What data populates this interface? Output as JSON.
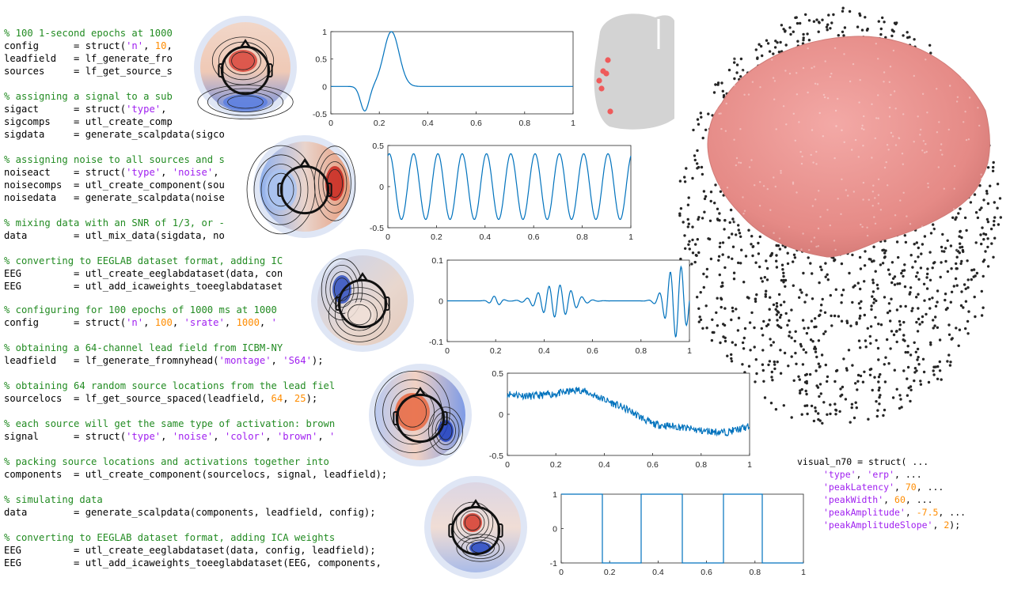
{
  "code_lines": [
    {
      "y": 46,
      "segs": [
        [
          "% 100 1-second epochs at 1000 ",
          "c"
        ]
      ]
    },
    {
      "y": 62,
      "segs": [
        [
          "config      = struct(",
          "p"
        ],
        [
          "'n'",
          "s"
        ],
        [
          ", ",
          "p"
        ],
        [
          "10",
          "n"
        ],
        [
          ",",
          "p"
        ]
      ]
    },
    {
      "y": 78,
      "segs": [
        [
          "leadfield   = lf_generate_fro",
          "p"
        ]
      ]
    },
    {
      "y": 94,
      "segs": [
        [
          "sources     = lf_get_source_s",
          "p"
        ]
      ]
    },
    {
      "y": 126,
      "segs": [
        [
          "% assigning a signal to a sub",
          "c"
        ]
      ]
    },
    {
      "y": 142,
      "segs": [
        [
          "sigact      = struct(",
          "p"
        ],
        [
          "'type'",
          "s"
        ],
        [
          ",",
          "p"
        ]
      ]
    },
    {
      "y": 158,
      "segs": [
        [
          "sigcomps    = utl_create_comp",
          "p"
        ]
      ]
    },
    {
      "y": 174,
      "segs": [
        [
          "sigdata     = generate_scalpdata(sigco",
          "p"
        ]
      ]
    },
    {
      "y": 206,
      "segs": [
        [
          "% assigning noise to all sources and s",
          "c"
        ]
      ]
    },
    {
      "y": 222,
      "segs": [
        [
          "noiseact    = struct(",
          "p"
        ],
        [
          "'type'",
          "s"
        ],
        [
          ", ",
          "p"
        ],
        [
          "'noise'",
          "s"
        ],
        [
          ",",
          "p"
        ]
      ]
    },
    {
      "y": 238,
      "segs": [
        [
          "noisecomps  = utl_create_component(sou",
          "p"
        ]
      ]
    },
    {
      "y": 254,
      "segs": [
        [
          "noisedata   = generate_scalpdata(noise",
          "p"
        ]
      ]
    },
    {
      "y": 286,
      "segs": [
        [
          "% mixing data with an SNR of 1/3, or -",
          "c"
        ]
      ]
    },
    {
      "y": 302,
      "segs": [
        [
          "data        = utl_mix_data(sigdata, no",
          "p"
        ]
      ]
    },
    {
      "y": 334,
      "segs": [
        [
          "% converting to EEGLAB dataset format, adding IC",
          "c"
        ]
      ]
    },
    {
      "y": 350,
      "segs": [
        [
          "EEG         = utl_create_eeglabdataset(data, con",
          "p"
        ]
      ]
    },
    {
      "y": 366,
      "segs": [
        [
          "EEG         = utl_add_icaweights_toeeglabdataset",
          "p"
        ]
      ]
    },
    {
      "y": 396,
      "segs": [
        [
          "% configuring for 100 epochs of 1000 ms at 1000",
          "c"
        ]
      ]
    },
    {
      "y": 412,
      "segs": [
        [
          "config      = struct(",
          "p"
        ],
        [
          "'n'",
          "s"
        ],
        [
          ", ",
          "p"
        ],
        [
          "100",
          "n"
        ],
        [
          ", ",
          "p"
        ],
        [
          "'srate'",
          "s"
        ],
        [
          ", ",
          "p"
        ],
        [
          "1000",
          "n"
        ],
        [
          ", ",
          "p"
        ],
        [
          "'",
          "s"
        ]
      ]
    },
    {
      "y": 444,
      "segs": [
        [
          "% obtaining a 64-channel lead field from ICBM-NY",
          "c"
        ]
      ]
    },
    {
      "y": 460,
      "segs": [
        [
          "leadfield   = lf_generate_fromnyhead(",
          "p"
        ],
        [
          "'montage'",
          "s"
        ],
        [
          ", ",
          "p"
        ],
        [
          "'S64'",
          "s"
        ],
        [
          ");",
          "p"
        ]
      ]
    },
    {
      "y": 492,
      "segs": [
        [
          "% obtaining 64 random source locations from the lead fiel",
          "c"
        ]
      ]
    },
    {
      "y": 508,
      "segs": [
        [
          "sourcelocs  = lf_get_source_spaced(leadfield, ",
          "p"
        ],
        [
          "64",
          "n"
        ],
        [
          ", ",
          "p"
        ],
        [
          "25",
          "n"
        ],
        [
          ");",
          "p"
        ]
      ]
    },
    {
      "y": 540,
      "segs": [
        [
          "% each source will get the same type of activation: brown",
          "c"
        ]
      ]
    },
    {
      "y": 556,
      "segs": [
        [
          "signal      = struct(",
          "p"
        ],
        [
          "'type'",
          "s"
        ],
        [
          ", ",
          "p"
        ],
        [
          "'noise'",
          "s"
        ],
        [
          ", ",
          "p"
        ],
        [
          "'color'",
          "s"
        ],
        [
          ", ",
          "p"
        ],
        [
          "'brown'",
          "s"
        ],
        [
          ", ",
          "p"
        ],
        [
          "'",
          "s"
        ]
      ]
    },
    {
      "y": 588,
      "segs": [
        [
          "% packing source locations and activations together into",
          "c"
        ]
      ]
    },
    {
      "y": 604,
      "segs": [
        [
          "components  = utl_create_component(sourcelocs, signal, leadfield);",
          "p"
        ]
      ]
    },
    {
      "y": 636,
      "segs": [
        [
          "% simulating data",
          "c"
        ]
      ]
    },
    {
      "y": 652,
      "segs": [
        [
          "data        = generate_scalpdata(components, leadfield, config);",
          "p"
        ]
      ]
    },
    {
      "y": 684,
      "segs": [
        [
          "% converting to EEGLAB dataset format, adding ICA weights",
          "c"
        ]
      ]
    },
    {
      "y": 700,
      "segs": [
        [
          "EEG         = utl_create_eeglabdataset(data, config, leadfield);",
          "p"
        ]
      ]
    },
    {
      "y": 716,
      "segs": [
        [
          "EEG         = utl_add_icaweights_toeeglabdataset(EEG, components,",
          "p"
        ]
      ]
    }
  ],
  "snippet_lines": [
    {
      "x": 1007,
      "y": 587,
      "segs": [
        [
          "visual_n70 = struct( ...",
          "p"
        ]
      ]
    },
    {
      "x": 1040,
      "y": 603,
      "segs": [
        [
          "'type'",
          "s"
        ],
        [
          ", ",
          "p"
        ],
        [
          "'erp'",
          "s"
        ],
        [
          ", ...",
          "p"
        ]
      ]
    },
    {
      "x": 1040,
      "y": 619,
      "segs": [
        [
          "'peakLatency'",
          "s"
        ],
        [
          ", ",
          "p"
        ],
        [
          "70",
          "n"
        ],
        [
          ", ...",
          "p"
        ]
      ]
    },
    {
      "x": 1040,
      "y": 635,
      "segs": [
        [
          "'peakWidth'",
          "s"
        ],
        [
          ", ",
          "p"
        ],
        [
          "60",
          "n"
        ],
        [
          ", ...",
          "p"
        ]
      ]
    },
    {
      "x": 1040,
      "y": 651,
      "segs": [
        [
          "'peakAmplitude'",
          "s"
        ],
        [
          ", ",
          "p"
        ],
        [
          "-7.5",
          "n"
        ],
        [
          ", ...",
          "p"
        ]
      ]
    },
    {
      "x": 1040,
      "y": 667,
      "segs": [
        [
          "'peakAmplitudeSlope'",
          "s"
        ],
        [
          ", ",
          "p"
        ],
        [
          "2",
          "n"
        ],
        [
          ");",
          "p"
        ]
      ]
    }
  ],
  "colors": {
    "comment": "#228b22",
    "string": "#a020f0",
    "number": "#ff8c00",
    "plot_line": "#0072bd",
    "brain": "#e87a7a"
  },
  "chart_data": [
    {
      "type": "line",
      "name_hint": "erp",
      "xlim": [
        0,
        1
      ],
      "ylim": [
        -0.5,
        1
      ],
      "xticks": [
        "0",
        "0.2",
        "0.4",
        "0.6",
        "0.8",
        "1"
      ],
      "yticks": [
        "1",
        "0.5",
        "0",
        "-0.5"
      ],
      "x": [
        0,
        0.1,
        0.14,
        0.18,
        0.22,
        0.25,
        0.28,
        0.32,
        0.36,
        1
      ],
      "y": [
        0,
        -0.05,
        -0.45,
        0.0,
        0.75,
        1.0,
        0.75,
        0.15,
        0.0,
        0
      ]
    },
    {
      "type": "line",
      "name_hint": "sinusoid",
      "xlim": [
        0,
        1
      ],
      "ylim": [
        -0.5,
        0.5
      ],
      "xticks": [
        "0",
        "0.2",
        "0.4",
        "0.6",
        "0.8",
        "1"
      ],
      "yticks": [
        "0.5",
        "0",
        "-0.5"
      ],
      "x": [
        0,
        1
      ],
      "y": [
        0.4,
        0.4
      ],
      "frequency": 10,
      "amplitude": 0.4
    },
    {
      "type": "line",
      "name_hint": "ersp",
      "xlim": [
        0,
        1
      ],
      "ylim": [
        -0.1,
        0.1
      ],
      "xticks": [
        "0",
        "0.2",
        "0.4",
        "0.6",
        "0.8",
        "1"
      ],
      "yticks": [
        "0.1",
        "0",
        "-0.1"
      ],
      "x": [
        0,
        0.15,
        0.2,
        0.3,
        0.4,
        0.5,
        0.6,
        0.8,
        0.9,
        1
      ],
      "y": [
        0,
        0,
        0.02,
        0.02,
        0.045,
        0.035,
        0.01,
        0.01,
        0.09,
        -0.08
      ]
    },
    {
      "type": "line",
      "name_hint": "noise",
      "xlim": [
        0,
        1
      ],
      "ylim": [
        -0.5,
        0.5
      ],
      "xticks": [
        "0",
        "0.2",
        "0.4",
        "0.6",
        "0.8",
        "1"
      ],
      "yticks": [
        "0.5",
        "0",
        "-0.5"
      ],
      "x": [
        0,
        0.1,
        0.2,
        0.3,
        0.4,
        0.5,
        0.6,
        0.7,
        0.8,
        0.9,
        1
      ],
      "y": [
        0.25,
        0.22,
        0.25,
        0.3,
        0.18,
        0.05,
        -0.12,
        -0.15,
        -0.2,
        -0.22,
        -0.15
      ]
    },
    {
      "type": "line",
      "name_hint": "arm",
      "xlim": [
        0,
        1
      ],
      "ylim": [
        -1,
        1
      ],
      "xticks": [
        "0",
        "0.2",
        "0.4",
        "0.6",
        "0.8",
        "1"
      ],
      "yticks": [
        "1",
        "0",
        "-1"
      ],
      "x": [
        0,
        0.17,
        0.17,
        0.33,
        0.33,
        0.5,
        0.5,
        0.67,
        0.67,
        0.83,
        0.83,
        1
      ],
      "y": [
        1,
        1,
        -1,
        -1,
        1,
        1,
        -1,
        -1,
        1,
        1,
        -1,
        -1
      ]
    }
  ]
}
